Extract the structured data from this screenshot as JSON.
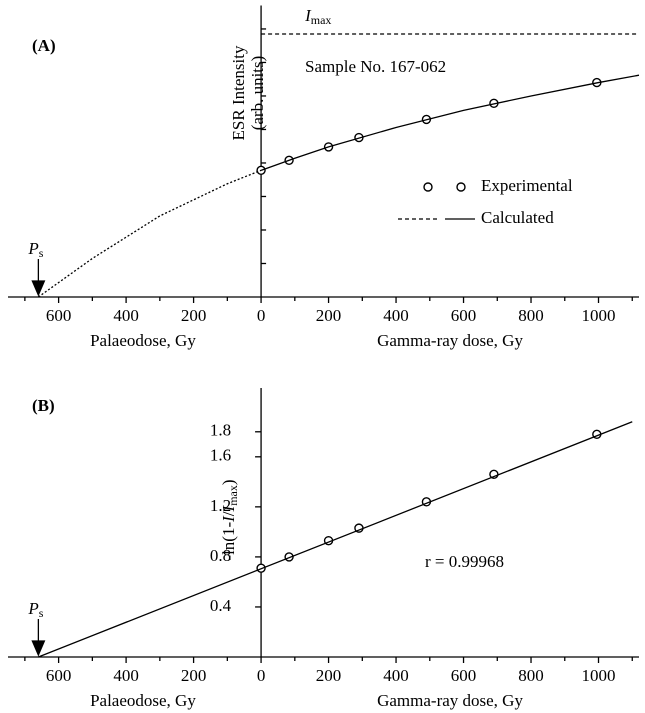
{
  "chart_data": [
    {
      "type": "scatter",
      "title": "(A)",
      "ylabel": [
        "ESR Intensity",
        "(arb. units)"
      ],
      "xlabel_left": "Palaeodose, Gy",
      "xlabel": "Gamma-ray dose, Gy",
      "annotation": "Sample No. 167-062",
      "imax": {
        "symbol": "I",
        "subscript": "max",
        "value": 7.85
      },
      "ps": {
        "symbol": "P",
        "subscript": "s",
        "x": -660
      },
      "xlim": [
        -750,
        1120
      ],
      "ylim": [
        0,
        8.7
      ],
      "xticks": [
        {
          "value": -600,
          "label": "600"
        },
        {
          "value": -400,
          "label": "400"
        },
        {
          "value": -200,
          "label": "200"
        },
        0,
        200,
        400,
        600,
        800,
        1000
      ],
      "xticks_minor": [
        -700,
        -500,
        -300,
        -100,
        100,
        300,
        500,
        700,
        900,
        1100
      ],
      "yticks_minor": [
        1,
        2,
        3,
        4,
        5,
        6,
        7,
        8
      ],
      "legend": true,
      "series": [
        {
          "name": "Experimental",
          "style": "markers",
          "color": "#000000",
          "x": [
            0,
            83,
            200,
            290,
            490,
            690,
            995
          ],
          "values": [
            3.78,
            4.08,
            4.48,
            4.76,
            5.3,
            5.78,
            6.4
          ]
        },
        {
          "name": "Calculated",
          "style": "line",
          "extrapolated_dash": true,
          "color": "#000000",
          "x": [
            -660,
            -500,
            -300,
            -100,
            0,
            100,
            200,
            400,
            600,
            800,
            1000,
            1120
          ],
          "values": [
            0,
            1.15,
            2.42,
            3.38,
            3.78,
            4.14,
            4.48,
            5.06,
            5.57,
            6.0,
            6.4,
            6.62
          ]
        }
      ]
    },
    {
      "type": "scatter",
      "title": "(B)",
      "ylabel": {
        "pre": "-ln(1-",
        "var": "I",
        "slash": "/",
        "sub": "max",
        "post": ")"
      },
      "xlabel_left": "Palaeodose, Gy",
      "xlabel": "Gamma-ray dose, Gy",
      "annotation": "r = 0.99968",
      "ps": {
        "symbol": "P",
        "subscript": "s",
        "x": -660
      },
      "xlim": [
        -750,
        1120
      ],
      "ylim": [
        0,
        2.15
      ],
      "xticks": [
        {
          "value": -600,
          "label": "600"
        },
        {
          "value": -400,
          "label": "400"
        },
        {
          "value": -200,
          "label": "200"
        },
        0,
        200,
        400,
        600,
        800,
        1000
      ],
      "xticks_minor": [
        -700,
        -500,
        -300,
        -100,
        100,
        300,
        500,
        700,
        900,
        1100
      ],
      "yticks": [
        0.4,
        0.8,
        1.2,
        1.6,
        1.8
      ],
      "legend": false,
      "series": [
        {
          "name": "Experimental",
          "style": "markers",
          "color": "#000000",
          "x": [
            0,
            83,
            200,
            290,
            490,
            690,
            995
          ],
          "values": [
            0.71,
            0.8,
            0.93,
            1.03,
            1.24,
            1.46,
            1.78
          ]
        },
        {
          "name": "Calculated",
          "style": "line",
          "extrapolated_dash": false,
          "color": "#000000",
          "x": [
            -660,
            1100
          ],
          "values": [
            0,
            1.88
          ]
        }
      ]
    }
  ]
}
